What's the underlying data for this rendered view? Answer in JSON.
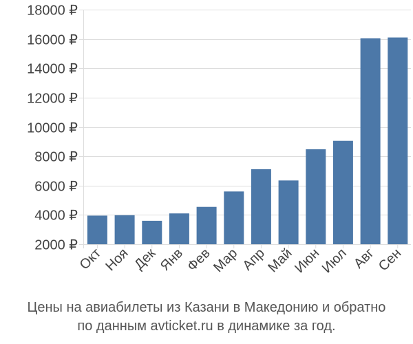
{
  "chart_data": {
    "type": "bar",
    "categories": [
      "Окт",
      "Ноя",
      "Дек",
      "Янв",
      "Фев",
      "Мар",
      "Апр",
      "Май",
      "Июн",
      "Июл",
      "Авг",
      "Сен"
    ],
    "values": [
      3950,
      3980,
      3600,
      4100,
      4550,
      5600,
      7120,
      6350,
      8480,
      9050,
      16050,
      16100
    ],
    "y_tick_labels": [
      "2000 ₽",
      "4000 ₽",
      "6000 ₽",
      "8000 ₽",
      "10000 ₽",
      "12000 ₽",
      "14000 ₽",
      "16000 ₽",
      "18000 ₽"
    ],
    "y_ticks": [
      2000,
      4000,
      6000,
      8000,
      10000,
      12000,
      14000,
      16000,
      18000
    ],
    "ylim": [
      2000,
      18000
    ],
    "grid": true,
    "bar_color": "#4c78a8",
    "title": "",
    "xlabel": "",
    "ylabel": ""
  },
  "caption": {
    "line1": "Цены на авиабилеты из Казани в Македонию и обратно",
    "line2": "по данным avticket.ru в динамике за год."
  }
}
